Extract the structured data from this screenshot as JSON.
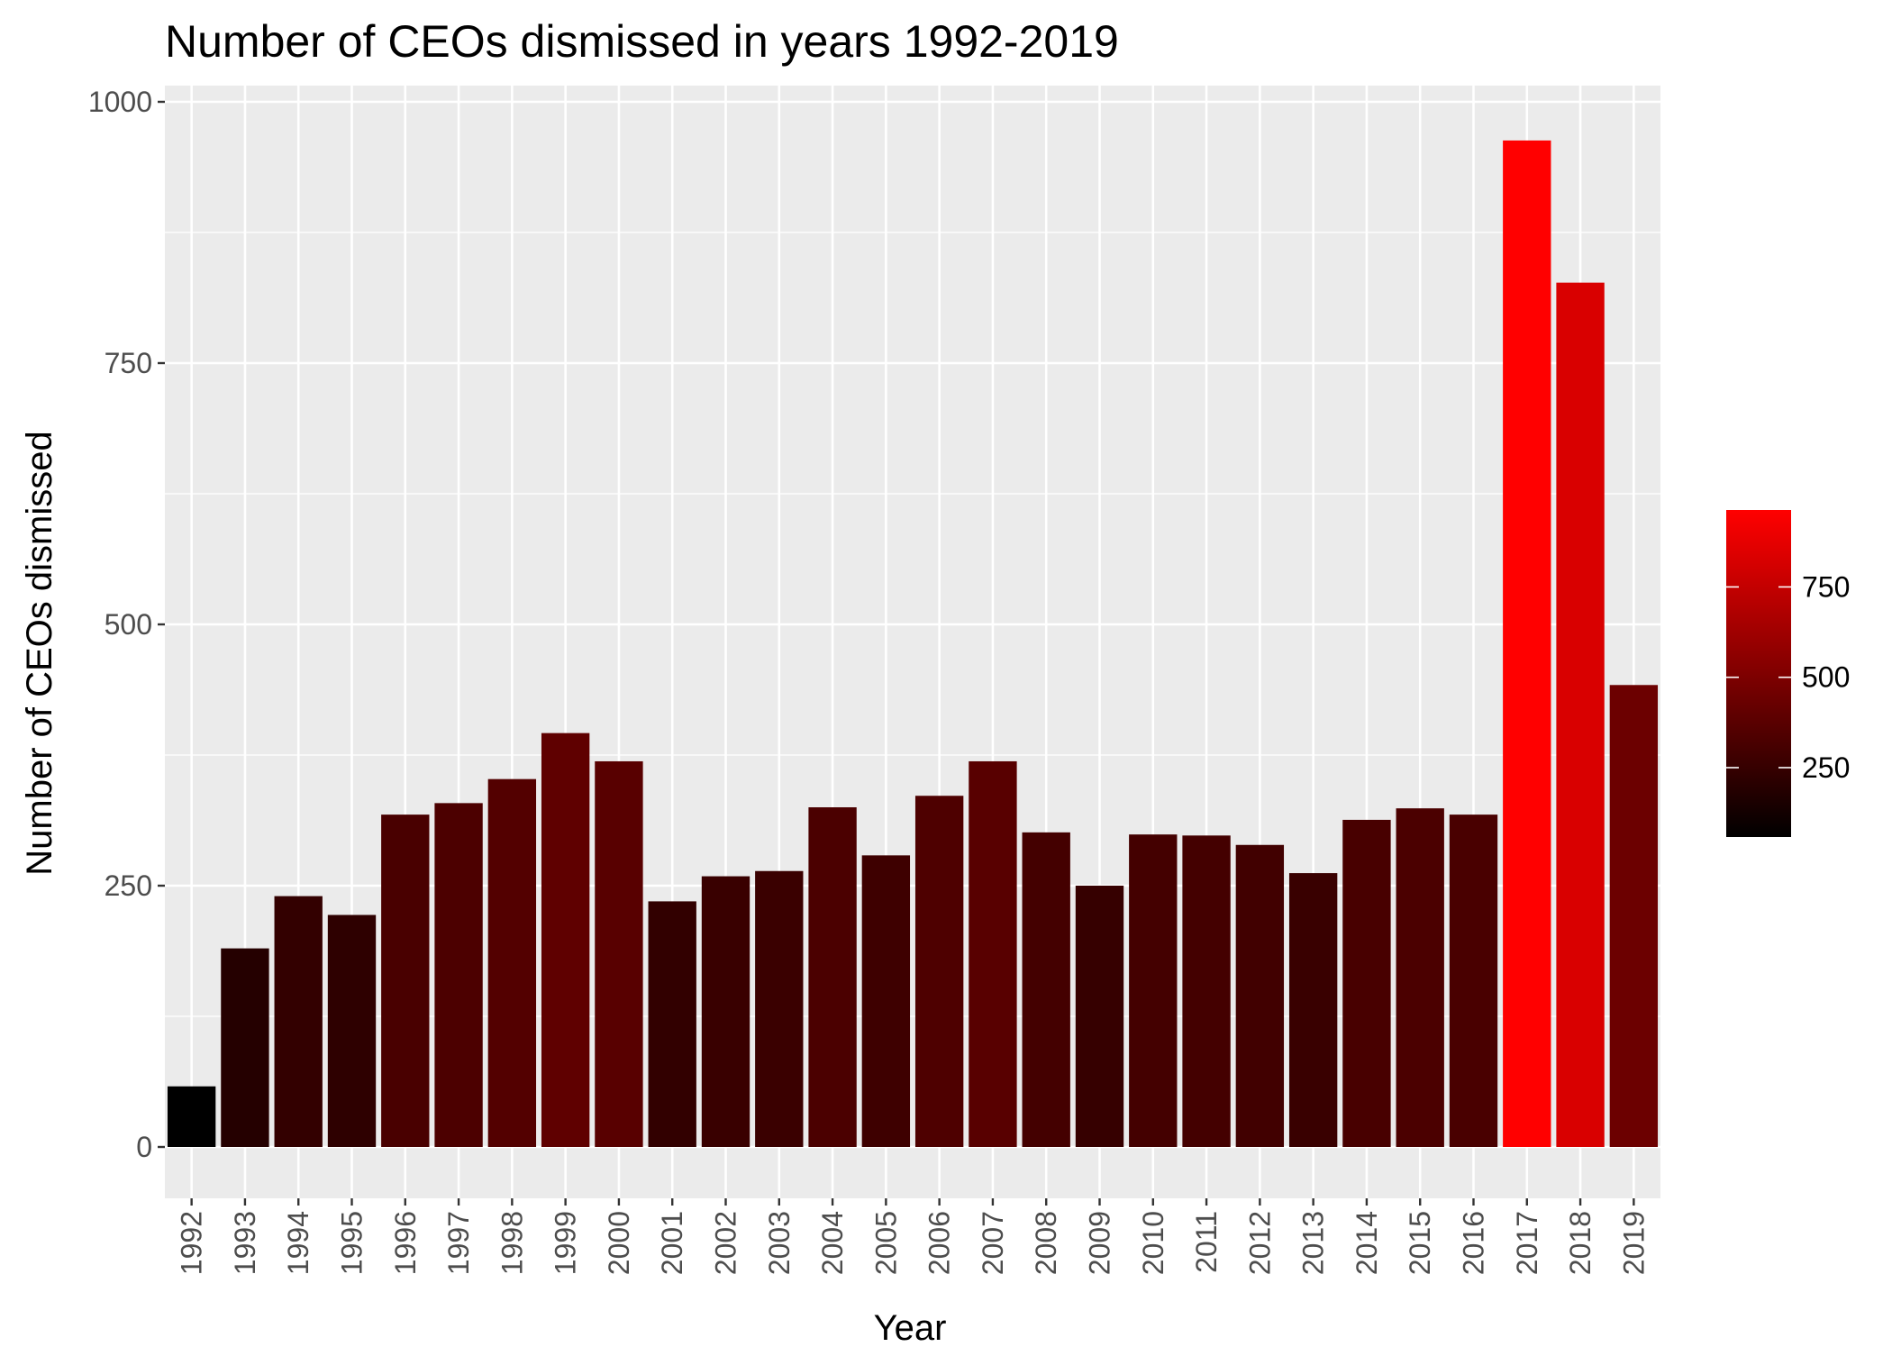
{
  "chart_data": {
    "type": "bar",
    "title": "Number of CEOs dismissed in years 1992-2019",
    "xlabel": "Year",
    "ylabel": "Number of CEOs dismissed",
    "ylim": [
      -50,
      1000
    ],
    "yticks": [
      0,
      250,
      500,
      750,
      1000
    ],
    "categories": [
      "1992",
      "1993",
      "1994",
      "1995",
      "1996",
      "1997",
      "1998",
      "1999",
      "2000",
      "2001",
      "2002",
      "2003",
      "2004",
      "2005",
      "2006",
      "2007",
      "2008",
      "2009",
      "2010",
      "2011",
      "2012",
      "2013",
      "2014",
      "2015",
      "2016",
      "2017",
      "2018",
      "2019"
    ],
    "values": [
      58,
      190,
      240,
      222,
      318,
      329,
      352,
      396,
      369,
      235,
      259,
      264,
      325,
      279,
      336,
      369,
      301,
      250,
      299,
      298,
      289,
      262,
      313,
      324,
      318,
      963,
      827,
      442
    ],
    "grid": true,
    "background": "#ebebeb",
    "gridline_color": "#ffffff",
    "color_scale": {
      "low": "#000000",
      "high": "#ff0000",
      "min": 58,
      "max": 963
    },
    "legend": {
      "placement": "right",
      "ticks": [
        250,
        500,
        750
      ]
    }
  }
}
